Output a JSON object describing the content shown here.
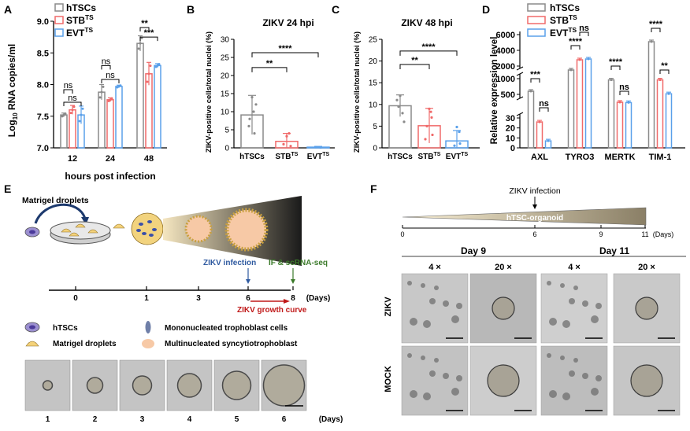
{
  "panels": {
    "A": {
      "letter": "A"
    },
    "B": {
      "letter": "B"
    },
    "C": {
      "letter": "C"
    },
    "D": {
      "letter": "D"
    },
    "E": {
      "letter": "E"
    },
    "F": {
      "letter": "F"
    }
  },
  "colors": {
    "hTSCs": "#8a8a8a",
    "STB": "#f06a6a",
    "EVT": "#5aa0ea",
    "blue_text": "#2f5aa0",
    "green_text": "#3b7a2a",
    "red_text": "#c01818"
  },
  "chart_data": [
    {
      "id": "A",
      "type": "bar",
      "ylabel_main": "Log",
      "ylabel_sub": "10",
      "ylabel_rest": " RNA copies/ml",
      "xlabel": "hours post infection",
      "categories": [
        "12",
        "24",
        "48"
      ],
      "ylim": [
        7.0,
        9.0
      ],
      "yticks": [
        "7.0",
        "7.5",
        "8.0",
        "8.5",
        "9.0"
      ],
      "legend": [
        {
          "main": "hTSCs",
          "sup": ""
        },
        {
          "main": "STB",
          "sup": "TS"
        },
        {
          "main": "EVT",
          "sup": "TS"
        }
      ],
      "series": [
        {
          "name": "hTSCs",
          "values": [
            7.52,
            7.88,
            8.65
          ],
          "err": [
            0.03,
            0.12,
            0.12
          ]
        },
        {
          "name": "STB",
          "values": [
            7.6,
            7.76,
            8.17
          ],
          "err": [
            0.07,
            0.03,
            0.18
          ]
        },
        {
          "name": "EVT",
          "values": [
            7.52,
            7.97,
            8.3
          ],
          "err": [
            0.14,
            0.02,
            0.03
          ]
        }
      ],
      "significance": [
        "ns",
        "ns",
        "ns",
        "ns",
        "**",
        "***"
      ]
    },
    {
      "id": "B",
      "type": "bar",
      "title": "ZIKV 24 hpi",
      "ylabel": "ZIKV-positive cells/total nuclei (%)",
      "categories": [
        {
          "main": "hTSCs",
          "sup": ""
        },
        {
          "main": "STB",
          "sup": "TS"
        },
        {
          "main": "EVT",
          "sup": "TS"
        }
      ],
      "ylim": [
        0,
        30
      ],
      "yticks": [
        "0",
        "5",
        "10",
        "15",
        "20",
        "25",
        "30"
      ],
      "values": [
        9.1,
        1.8,
        0.2
      ],
      "err": [
        5.4,
        2.2,
        0.2
      ],
      "significance": [
        "**",
        "****"
      ]
    },
    {
      "id": "C",
      "type": "bar",
      "title": "ZIKV 48 hpi",
      "ylabel": "ZIKV-positive cells/total nuclei (%)",
      "categories": [
        {
          "main": "hTSCs",
          "sup": ""
        },
        {
          "main": "STB",
          "sup": "TS"
        },
        {
          "main": "EVT",
          "sup": "TS"
        }
      ],
      "ylim": [
        0,
        25
      ],
      "yticks": [
        "0",
        "5",
        "10",
        "15",
        "20",
        "25"
      ],
      "values": [
        9.7,
        5.1,
        1.6
      ],
      "err": [
        2.5,
        4.0,
        2.4
      ],
      "significance": [
        "**",
        "****"
      ]
    },
    {
      "id": "D",
      "type": "bar",
      "ylabel": "Relative expression level",
      "categories": [
        "AXL",
        "TYRO3",
        "MERTK",
        "TIM-1"
      ],
      "yticks_top": [
        "2000",
        "4000",
        "6000"
      ],
      "yticks_mid": [
        "500",
        "1000"
      ],
      "yticks_bot": [
        "0",
        "10",
        "20",
        "30"
      ],
      "legend": [
        {
          "main": "hTSCs",
          "sup": ""
        },
        {
          "main": "STB",
          "sup": "TS"
        },
        {
          "main": "EVT",
          "sup": "TS"
        }
      ],
      "series": [
        {
          "name": "hTSCs",
          "values": [
            600,
            1500,
            960,
            5100
          ]
        },
        {
          "name": "STB",
          "values": [
            26,
            2800,
            250,
            960
          ]
        },
        {
          "name": "EVT",
          "values": [
            7,
            2900,
            240,
            520
          ]
        }
      ],
      "significance": [
        "***",
        "ns",
        "****",
        "ns",
        "****",
        "ns",
        "****",
        "**"
      ]
    }
  ],
  "panel_e": {
    "top_label": "Matrigel droplets",
    "timeline_ticks": [
      "0",
      "1",
      "3",
      "6",
      "8"
    ],
    "timeline_unit": "(Days)",
    "zikv_infection": "ZIKV infection",
    "if_seq": "IF & scRNA-seq",
    "growth_curve": "ZIKV growth curve",
    "legend": [
      "hTSCs",
      "Matrigel droplets",
      "Mononucleated trophoblast cells",
      "Multinucleated syncytiotrophoblast"
    ],
    "photo_labels": [
      "1",
      "2",
      "3",
      "4",
      "5",
      "6"
    ],
    "photo_unit": "(Days)"
  },
  "panel_f": {
    "infection": "ZIKV infection",
    "bar_label": "hTSC-organoid",
    "ticks": [
      "0",
      "6",
      "9",
      "11"
    ],
    "unit": "(Days)",
    "day_headers": [
      "Day 9",
      "Day 11"
    ],
    "mag_headers": [
      "4 ×",
      "20 ×",
      "4 ×",
      "20 ×"
    ],
    "row_labels": [
      "ZIKV",
      "MOCK"
    ]
  }
}
